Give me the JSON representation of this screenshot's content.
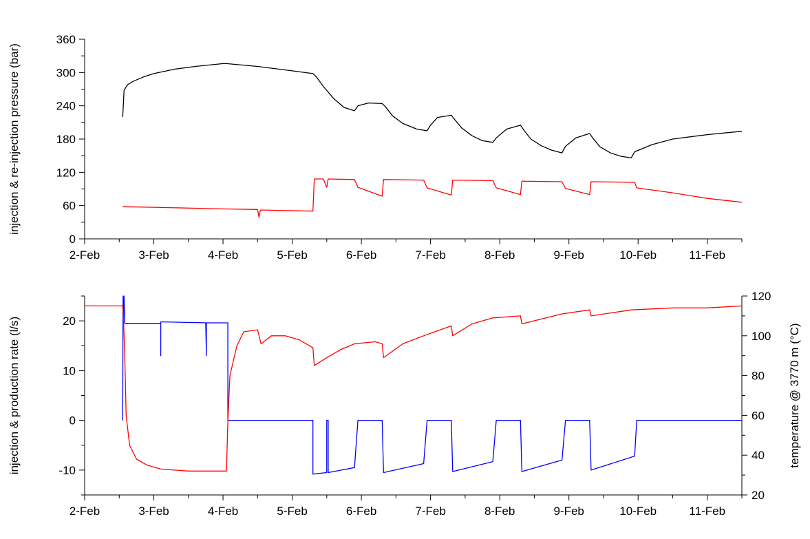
{
  "chart_data": [
    {
      "type": "line",
      "ylabel": "injection & re-injection pressure (bar)",
      "xlim": [
        0,
        9.5
      ],
      "ylim": [
        0,
        360
      ],
      "x_ticks": [
        0,
        1,
        2,
        3,
        4,
        5,
        6,
        7,
        8,
        9
      ],
      "x_tick_labels": [
        "2-Feb",
        "3-Feb",
        "4-Feb",
        "5-Feb",
        "6-Feb",
        "7-Feb",
        "8-Feb",
        "9-Feb",
        "10-Feb",
        "11-Feb"
      ],
      "y_ticks": [
        0,
        60,
        120,
        180,
        240,
        300,
        360
      ],
      "y_tick_labels": [
        "0",
        "60",
        "120",
        "180",
        "240",
        "300",
        "360"
      ],
      "series": [
        {
          "color": "#000000",
          "x": [
            0.55,
            0.57,
            0.62,
            0.7,
            0.85,
            1.0,
            1.3,
            1.6,
            2.0,
            2.05,
            2.5,
            3.0,
            3.3,
            3.35,
            3.45,
            3.6,
            3.75,
            3.9,
            3.95,
            4.1,
            4.3,
            4.35,
            4.45,
            4.6,
            4.8,
            4.95,
            5.0,
            5.1,
            5.3,
            5.35,
            5.45,
            5.6,
            5.75,
            5.9,
            5.95,
            6.1,
            6.3,
            6.35,
            6.45,
            6.6,
            6.75,
            6.9,
            6.95,
            7.1,
            7.3,
            7.35,
            7.45,
            7.6,
            7.75,
            7.9,
            7.95,
            8.2,
            8.5,
            9.0,
            9.5
          ],
          "y": [
            220,
            268,
            278,
            284,
            292,
            298,
            306,
            311,
            316,
            316,
            311,
            303,
            298,
            292,
            275,
            253,
            237,
            231,
            240,
            245,
            244,
            238,
            222,
            208,
            198,
            195,
            205,
            219,
            223,
            215,
            200,
            186,
            177,
            174,
            182,
            198,
            205,
            196,
            180,
            168,
            160,
            155,
            167,
            182,
            190,
            181,
            166,
            155,
            149,
            146,
            157,
            170,
            180,
            188,
            194
          ]
        },
        {
          "color": "#ff0000",
          "x": [
            0.55,
            1.0,
            2.0,
            2.5,
            2.52,
            2.54,
            2.56,
            3.3,
            3.32,
            3.45,
            3.5,
            3.52,
            3.9,
            3.95,
            4.3,
            4.32,
            4.9,
            4.95,
            5.3,
            5.32,
            5.9,
            5.95,
            6.3,
            6.32,
            6.9,
            6.95,
            7.3,
            7.32,
            7.95,
            7.98,
            8.5,
            9.0,
            9.5
          ],
          "y": [
            58,
            57,
            54,
            53,
            39,
            52,
            52,
            50,
            108,
            108,
            93,
            108,
            107,
            93,
            77,
            107,
            106,
            92,
            79,
            106,
            105,
            92,
            80,
            104,
            103,
            91,
            80,
            103,
            102,
            92,
            83,
            73,
            66
          ]
        }
      ]
    },
    {
      "type": "line",
      "ylabel": "injection & production rate (l/s)",
      "ylabel_right": "temperature @ 3770 m (°C)",
      "xlim": [
        0,
        9.5
      ],
      "ylim": [
        -15,
        25
      ],
      "y2lim": [
        20,
        120
      ],
      "x_ticks": [
        0,
        1,
        2,
        3,
        4,
        5,
        6,
        7,
        8,
        9
      ],
      "x_tick_labels": [
        "2-Feb",
        "3-Feb",
        "4-Feb",
        "5-Feb",
        "6-Feb",
        "7-Feb",
        "8-Feb",
        "9-Feb",
        "10-Feb",
        "11-Feb"
      ],
      "y_ticks": [
        -10,
        0,
        10,
        20
      ],
      "y_tick_labels": [
        "-10",
        "0",
        "10",
        "20"
      ],
      "y2_ticks": [
        20,
        40,
        60,
        80,
        100,
        120
      ],
      "y2_tick_labels": [
        "20",
        "40",
        "60",
        "80",
        "100",
        "120"
      ],
      "series": [
        {
          "axis": "left",
          "color": "#0000ff",
          "x": [
            0.55,
            0.555,
            0.56,
            0.57,
            0.58,
            0.59,
            1.1,
            1.1,
            1.1,
            1.11,
            1.11,
            1.8,
            1.75,
            1.76,
            1.76,
            1.77,
            1.77,
            2.07,
            2.07,
            3.3,
            3.3,
            3.5,
            3.5,
            3.52,
            3.52,
            3.9,
            3.95,
            4.3,
            4.32,
            4.9,
            4.95,
            5.3,
            5.32,
            5.9,
            5.95,
            6.3,
            6.32,
            6.9,
            6.95,
            7.3,
            7.32,
            7.95,
            7.98,
            9.5
          ],
          "y": [
            0,
            25,
            19.5,
            25,
            19.5,
            19.5,
            19.5,
            13,
            19.8,
            19.8,
            19.8,
            19.6,
            19.6,
            13,
            19.6,
            19.6,
            19.6,
            19.6,
            0,
            0,
            -10.8,
            -10.5,
            0,
            0,
            -10.5,
            -9.5,
            0,
            0,
            -10.5,
            -8.7,
            0,
            0,
            -10.3,
            -8.3,
            0,
            0,
            -10.3,
            -8.0,
            0,
            0,
            -10.0,
            -7.2,
            0,
            0
          ]
        },
        {
          "axis": "right",
          "color": "#ff0000",
          "x": [
            0.0,
            0.55,
            0.56,
            0.58,
            0.6,
            0.65,
            0.75,
            0.9,
            1.1,
            1.5,
            2.05,
            2.07,
            2.1,
            2.2,
            2.3,
            2.5,
            2.55,
            2.7,
            2.9,
            3.1,
            3.3,
            3.32,
            3.5,
            3.7,
            3.9,
            4.2,
            4.3,
            4.32,
            4.6,
            4.9,
            5.3,
            5.32,
            5.6,
            5.9,
            6.3,
            6.32,
            6.9,
            7.3,
            7.32,
            7.9,
            8.5,
            9.0,
            9.5
          ],
          "y": [
            115,
            115,
            110,
            90,
            60,
            45,
            38,
            35,
            33,
            32,
            32,
            57,
            80,
            95,
            102,
            103,
            96,
            100,
            100,
            98,
            94,
            85,
            89,
            93,
            96,
            97,
            96,
            89,
            96,
            100,
            105,
            100,
            106,
            109,
            110,
            106,
            111,
            113,
            110,
            113,
            114,
            114,
            115
          ]
        }
      ]
    }
  ]
}
